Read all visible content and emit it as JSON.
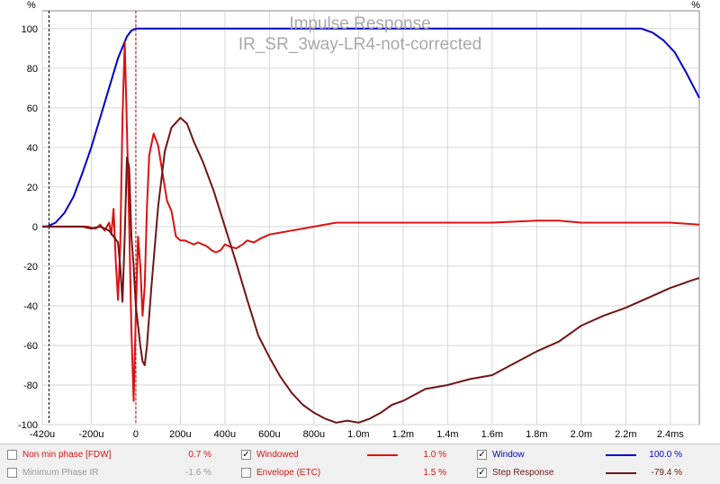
{
  "chart_data": {
    "type": "line",
    "title": "Impulse Response",
    "subtitle": "IR_SR_3way-LR4-not-corrected",
    "ylabel": "%",
    "xlim": [
      -0.00042,
      0.00253
    ],
    "ylim": [
      -100,
      115
    ],
    "grid": true,
    "x_ticks": [
      {
        "v": -0.00042,
        "label": "-420u"
      },
      {
        "v": -0.0002,
        "label": "-200u"
      },
      {
        "v": 0,
        "label": "0"
      },
      {
        "v": 0.0002,
        "label": "200u"
      },
      {
        "v": 0.0004,
        "label": "400u"
      },
      {
        "v": 0.0006,
        "label": "600u"
      },
      {
        "v": 0.0008,
        "label": "800u"
      },
      {
        "v": 0.001,
        "label": "1.0m"
      },
      {
        "v": 0.0012,
        "label": "1.2m"
      },
      {
        "v": 0.0014,
        "label": "1.4m"
      },
      {
        "v": 0.0016,
        "label": "1.6m"
      },
      {
        "v": 0.0018,
        "label": "1.8m"
      },
      {
        "v": 0.002,
        "label": "2.0m"
      },
      {
        "v": 0.0022,
        "label": "2.2m"
      },
      {
        "v": 0.0024,
        "label": "2.4ms"
      }
    ],
    "y_ticks": [
      {
        "v": 100,
        "label": "100"
      },
      {
        "v": 80,
        "label": "80"
      },
      {
        "v": 60,
        "label": "60"
      },
      {
        "v": 40,
        "label": "40"
      },
      {
        "v": 20,
        "label": "20"
      },
      {
        "v": 0,
        "label": "0"
      },
      {
        "v": -20,
        "label": "-20"
      },
      {
        "v": -40,
        "label": "-40"
      },
      {
        "v": -60,
        "label": "-60"
      },
      {
        "v": -80,
        "label": "-80"
      },
      {
        "v": -100,
        "label": "-100"
      }
    ],
    "markers": [
      {
        "x": -0.00039,
        "color": "#000000"
      },
      {
        "x": 0,
        "color": "#cc0000"
      }
    ],
    "series": [
      {
        "name": "Window",
        "color": "#0000cc",
        "x": [
          -0.00042,
          -0.0004,
          -0.00036,
          -0.00032,
          -0.00028,
          -0.00024,
          -0.0002,
          -0.00016,
          -0.00012,
          -8e-05,
          -4e-05,
          -2e-05,
          0,
          0.0001,
          0.0005,
          0.001,
          0.0015,
          0.002,
          0.00222,
          0.00227,
          0.00232,
          0.00237,
          0.00242,
          0.00247,
          0.00253
        ],
        "y": [
          0,
          0,
          2,
          7,
          15,
          27,
          40,
          55,
          70,
          85,
          96,
          99,
          100,
          100,
          100,
          100,
          100,
          100,
          100,
          100,
          98,
          94,
          88,
          78,
          65
        ]
      },
      {
        "name": "Windowed",
        "color": "#dd1111",
        "x": [
          -0.00042,
          -0.00028,
          -0.00022,
          -0.00018,
          -0.00016,
          -0.00014,
          -0.00012,
          -0.00011,
          -0.0001,
          -9e-05,
          -8e-05,
          -7e-05,
          -6e-05,
          -5e-05,
          -4e-05,
          -3e-05,
          -2e-05,
          -1e-05,
          0,
          1e-05,
          2e-05,
          3e-05,
          4e-05,
          5e-05,
          6e-05,
          8e-05,
          0.0001,
          0.00012,
          0.00014,
          0.00016,
          0.00018,
          0.0002,
          0.00022,
          0.00024,
          0.00026,
          0.00028,
          0.0003,
          0.00032,
          0.00034,
          0.00036,
          0.00038,
          0.0004,
          0.00042,
          0.00045,
          0.00048,
          0.0005,
          0.00053,
          0.00056,
          0.0006,
          0.00065,
          0.0007,
          0.00075,
          0.0008,
          0.0009,
          0.001,
          0.0011,
          0.0012,
          0.0014,
          0.0016,
          0.0018,
          0.0019,
          0.002,
          0.0022,
          0.0024,
          0.00253
        ],
        "y": [
          0,
          0,
          0,
          -1,
          1,
          -2,
          2,
          -4,
          9,
          -18,
          -37,
          -10,
          55,
          93,
          50,
          2,
          -52,
          -88,
          -45,
          -5,
          -20,
          -45,
          -30,
          10,
          36,
          47,
          41,
          27,
          13,
          8,
          -5,
          -7,
          -7,
          -8,
          -9,
          -8,
          -9,
          -10,
          -12,
          -13,
          -12,
          -9,
          -10,
          -11,
          -9,
          -7,
          -8,
          -6,
          -4,
          -3,
          -2,
          -1,
          0,
          2,
          2,
          2,
          2,
          2,
          2,
          3,
          3,
          2,
          2,
          2,
          1
        ]
      },
      {
        "name": "Step Response",
        "color": "#701515",
        "x": [
          -0.00042,
          -0.0003,
          -0.00024,
          -0.0002,
          -0.00016,
          -0.00012,
          -0.0001,
          -8e-05,
          -7e-05,
          -6e-05,
          -5e-05,
          -4e-05,
          -3e-05,
          -2e-05,
          -1e-05,
          0,
          1e-05,
          2e-05,
          3e-05,
          4e-05,
          5e-05,
          7e-05,
          0.0001,
          0.00013,
          0.00016,
          0.0002,
          0.00023,
          0.00026,
          0.0003,
          0.00035,
          0.0004,
          0.00045,
          0.0005,
          0.00055,
          0.0006,
          0.00065,
          0.0007,
          0.00075,
          0.0008,
          0.00085,
          0.0009,
          0.00095,
          0.001,
          0.00105,
          0.0011,
          0.00115,
          0.0012,
          0.0013,
          0.0014,
          0.0015,
          0.0016,
          0.0017,
          0.0018,
          0.0019,
          0.002,
          0.0021,
          0.0022,
          0.0023,
          0.0024,
          0.0025,
          0.00253
        ],
        "y": [
          0,
          0,
          0,
          -1,
          0,
          -2,
          -5,
          -8,
          -20,
          -38,
          -5,
          35,
          30,
          -5,
          -20,
          -40,
          -50,
          -60,
          -68,
          -70,
          -60,
          -30,
          10,
          38,
          50,
          55,
          52,
          43,
          33,
          18,
          0,
          -18,
          -37,
          -55,
          -66,
          -76,
          -84,
          -90,
          -94,
          -97,
          -99,
          -98,
          -99,
          -97,
          -94,
          -90,
          -88,
          -82,
          -80,
          -77,
          -75,
          -69,
          -63,
          -58,
          -50,
          -45,
          -41,
          -36,
          -31,
          -27,
          -26
        ]
      }
    ]
  },
  "legend": {
    "rows": [
      {
        "items": [
          {
            "label": "Non min phase [FDW]",
            "value": "0.7 %",
            "checked": false,
            "color": "#dd1111",
            "enabled": true
          },
          {
            "label": "Windowed",
            "value": "1.0 %",
            "checked": true,
            "color": "#dd1111",
            "enabled": true
          },
          {
            "label": "Window",
            "value": "100.0 %",
            "checked": true,
            "color": "#0000cc",
            "enabled": true
          }
        ]
      },
      {
        "items": [
          {
            "label": "Minimum Phase IR",
            "value": "-1.6 %",
            "checked": false,
            "color": "#9a9a9a",
            "enabled": false
          },
          {
            "label": "Envelope (ETC)",
            "value": "1.5 %",
            "checked": false,
            "color": "#dd1111",
            "enabled": true
          },
          {
            "label": "Step Response",
            "value": "-79.4 %",
            "checked": true,
            "color": "#701515",
            "enabled": true
          }
        ]
      }
    ],
    "check_glyph": "✓"
  }
}
